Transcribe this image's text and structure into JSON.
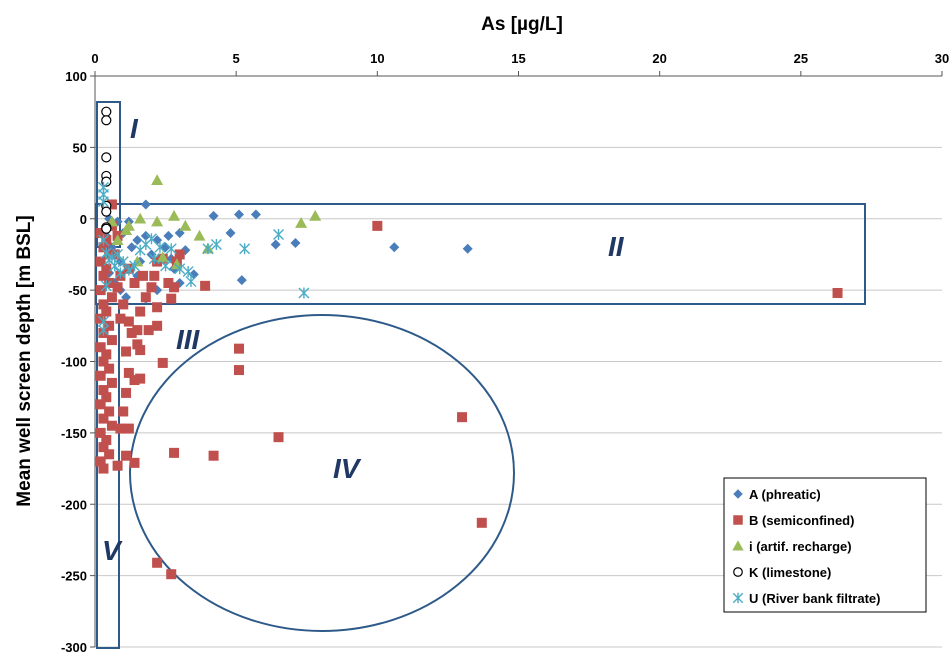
{
  "chart_data": {
    "type": "scatter",
    "title": "",
    "xlabel": "As  [µg/L]",
    "ylabel": "Mean well screen depth   [m BSL]",
    "xlim": [
      0,
      30
    ],
    "ylim": [
      -300,
      100
    ],
    "x_axis_position": "top",
    "x_ticks": [
      "0",
      "5",
      "10",
      "15",
      "20",
      "25",
      "30"
    ],
    "y_ticks": [
      "100",
      "50",
      "0",
      "-50",
      "-100",
      "-150",
      "-200",
      "-250",
      "-300"
    ],
    "grid": "horizontal",
    "legend_placement": "bottom-right",
    "zones": [
      "I",
      "II",
      "III",
      "IV",
      "V"
    ],
    "series": [
      {
        "name": "A (phreatic)",
        "marker": "diamond",
        "color": "#4a7ebb",
        "points": [
          [
            0.5,
            0
          ],
          [
            0.6,
            -5
          ],
          [
            0.8,
            -2
          ],
          [
            1.0,
            -10
          ],
          [
            1.2,
            -2
          ],
          [
            1.3,
            -20
          ],
          [
            1.5,
            -15
          ],
          [
            1.8,
            -12
          ],
          [
            1.8,
            10
          ],
          [
            2.2,
            -15
          ],
          [
            2.5,
            -20
          ],
          [
            2.7,
            -28
          ],
          [
            2.6,
            -12
          ],
          [
            3.0,
            -10
          ],
          [
            3.2,
            -22
          ],
          [
            3.5,
            -39
          ],
          [
            3.0,
            -45
          ],
          [
            2.2,
            -50
          ],
          [
            1.8,
            -56
          ],
          [
            1.5,
            -40
          ],
          [
            1.2,
            -35
          ],
          [
            0.9,
            -30
          ],
          [
            0.7,
            -45
          ],
          [
            0.6,
            -20
          ],
          [
            0.9,
            -50
          ],
          [
            1.1,
            -55
          ],
          [
            1.6,
            -30
          ],
          [
            2.0,
            -25
          ],
          [
            2.8,
            -35
          ],
          [
            4.2,
            2
          ],
          [
            4.8,
            -10
          ],
          [
            5.1,
            3
          ],
          [
            5.7,
            3
          ],
          [
            5.2,
            -43
          ],
          [
            6.4,
            -18
          ],
          [
            7.1,
            -17
          ],
          [
            10.6,
            -20
          ],
          [
            13.2,
            -21
          ],
          [
            0.4,
            -12
          ],
          [
            0.5,
            -38
          ]
        ]
      },
      {
        "name": "B  (semiconfined)",
        "marker": "square",
        "color": "#c0504d",
        "points": [
          [
            0.2,
            -10
          ],
          [
            0.3,
            -20
          ],
          [
            0.2,
            -30
          ],
          [
            0.3,
            -40
          ],
          [
            0.2,
            -50
          ],
          [
            0.3,
            -60
          ],
          [
            0.2,
            -70
          ],
          [
            0.3,
            -80
          ],
          [
            0.2,
            -90
          ],
          [
            0.3,
            -100
          ],
          [
            0.2,
            -110
          ],
          [
            0.3,
            -120
          ],
          [
            0.2,
            -130
          ],
          [
            0.3,
            -140
          ],
          [
            0.2,
            -150
          ],
          [
            0.3,
            -160
          ],
          [
            0.2,
            -170
          ],
          [
            0.3,
            -175
          ],
          [
            0.4,
            -15
          ],
          [
            0.5,
            -25
          ],
          [
            0.4,
            -35
          ],
          [
            0.5,
            -45
          ],
          [
            0.6,
            -55
          ],
          [
            0.4,
            -65
          ],
          [
            0.5,
            -75
          ],
          [
            0.6,
            -85
          ],
          [
            0.4,
            -95
          ],
          [
            0.5,
            -105
          ],
          [
            0.6,
            -115
          ],
          [
            0.4,
            -125
          ],
          [
            0.5,
            -135
          ],
          [
            0.6,
            -145
          ],
          [
            0.4,
            -155
          ],
          [
            0.5,
            -165
          ],
          [
            0.6,
            10
          ],
          [
            0.6,
            -5
          ],
          [
            0.8,
            -12
          ],
          [
            0.7,
            -25
          ],
          [
            0.9,
            -40
          ],
          [
            0.8,
            -48
          ],
          [
            1.0,
            -60
          ],
          [
            0.9,
            -70
          ],
          [
            1.2,
            -72
          ],
          [
            1.3,
            -80
          ],
          [
            1.5,
            -78
          ],
          [
            1.6,
            -65
          ],
          [
            1.8,
            -55
          ],
          [
            2.0,
            -48
          ],
          [
            1.7,
            -40
          ],
          [
            2.1,
            -40
          ],
          [
            2.2,
            -30
          ],
          [
            2.4,
            -28
          ],
          [
            2.6,
            -45
          ],
          [
            2.7,
            -56
          ],
          [
            2.8,
            -48
          ],
          [
            2.9,
            -30
          ],
          [
            3.0,
            -25
          ],
          [
            1.2,
            -35
          ],
          [
            1.4,
            -45
          ],
          [
            2.2,
            -62
          ],
          [
            2.2,
            -75
          ],
          [
            1.9,
            -78
          ],
          [
            1.5,
            -88
          ],
          [
            1.6,
            -92
          ],
          [
            1.1,
            -93
          ],
          [
            1.2,
            -108
          ],
          [
            1.4,
            -113
          ],
          [
            1.6,
            -112
          ],
          [
            1.1,
            -122
          ],
          [
            2.4,
            -101
          ],
          [
            1.0,
            -135
          ],
          [
            1.2,
            -147
          ],
          [
            0.9,
            -147
          ],
          [
            1.1,
            -166
          ],
          [
            0.8,
            -173
          ],
          [
            1.4,
            -171
          ],
          [
            2.8,
            -164
          ],
          [
            4.2,
            -166
          ],
          [
            3.9,
            -47
          ],
          [
            5.1,
            -91
          ],
          [
            5.1,
            -106
          ],
          [
            6.5,
            -153
          ],
          [
            2.2,
            -241
          ],
          [
            2.7,
            -249
          ],
          [
            10.0,
            -5
          ],
          [
            13.0,
            -139
          ],
          [
            13.7,
            -213
          ],
          [
            26.3,
            -52
          ]
        ]
      },
      {
        "name": "i  (artif. recharge)",
        "marker": "triangle",
        "color": "#9bbb59",
        "points": [
          [
            0.6,
            -2
          ],
          [
            1.2,
            -5
          ],
          [
            1.6,
            0
          ],
          [
            2.2,
            -2
          ],
          [
            2.2,
            27
          ],
          [
            2.8,
            2
          ],
          [
            3.2,
            -5
          ],
          [
            3.7,
            -12
          ],
          [
            4.0,
            -21
          ],
          [
            7.3,
            -3
          ],
          [
            7.8,
            2
          ],
          [
            1.5,
            -30
          ],
          [
            2.4,
            -27
          ],
          [
            2.9,
            -32
          ],
          [
            1.1,
            -8
          ],
          [
            0.8,
            -15
          ]
        ]
      },
      {
        "name": "K  (limestone)",
        "marker": "circle",
        "color": "#000000",
        "points": [
          [
            0.4,
            75
          ],
          [
            0.4,
            69
          ],
          [
            0.4,
            43
          ],
          [
            0.4,
            30
          ],
          [
            0.4,
            26
          ],
          [
            0.4,
            9
          ],
          [
            0.4,
            5
          ],
          [
            0.4,
            -6
          ],
          [
            0.4,
            -7
          ]
        ]
      },
      {
        "name": "U  (River bank filtrate)",
        "marker": "star",
        "color": "#4bacc6",
        "points": [
          [
            0.3,
            22
          ],
          [
            0.3,
            17
          ],
          [
            0.3,
            12
          ],
          [
            0.3,
            -15
          ],
          [
            0.4,
            -24
          ],
          [
            0.5,
            -29
          ],
          [
            0.6,
            -27
          ],
          [
            0.7,
            -33
          ],
          [
            0.8,
            -25
          ],
          [
            0.9,
            -38
          ],
          [
            1.0,
            -30
          ],
          [
            1.2,
            -36
          ],
          [
            1.4,
            -33
          ],
          [
            1.6,
            -22
          ],
          [
            1.8,
            -18
          ],
          [
            2.0,
            -14
          ],
          [
            2.1,
            -28
          ],
          [
            2.3,
            -20
          ],
          [
            2.5,
            -33
          ],
          [
            2.7,
            -21
          ],
          [
            3.0,
            -35
          ],
          [
            3.3,
            -37
          ],
          [
            3.4,
            -44
          ],
          [
            4.0,
            -21
          ],
          [
            4.3,
            -18
          ],
          [
            5.3,
            -21
          ],
          [
            6.5,
            -11
          ],
          [
            7.4,
            -52
          ],
          [
            0.3,
            -78
          ],
          [
            0.3,
            -72
          ],
          [
            0.4,
            -47
          ]
        ]
      }
    ]
  }
}
